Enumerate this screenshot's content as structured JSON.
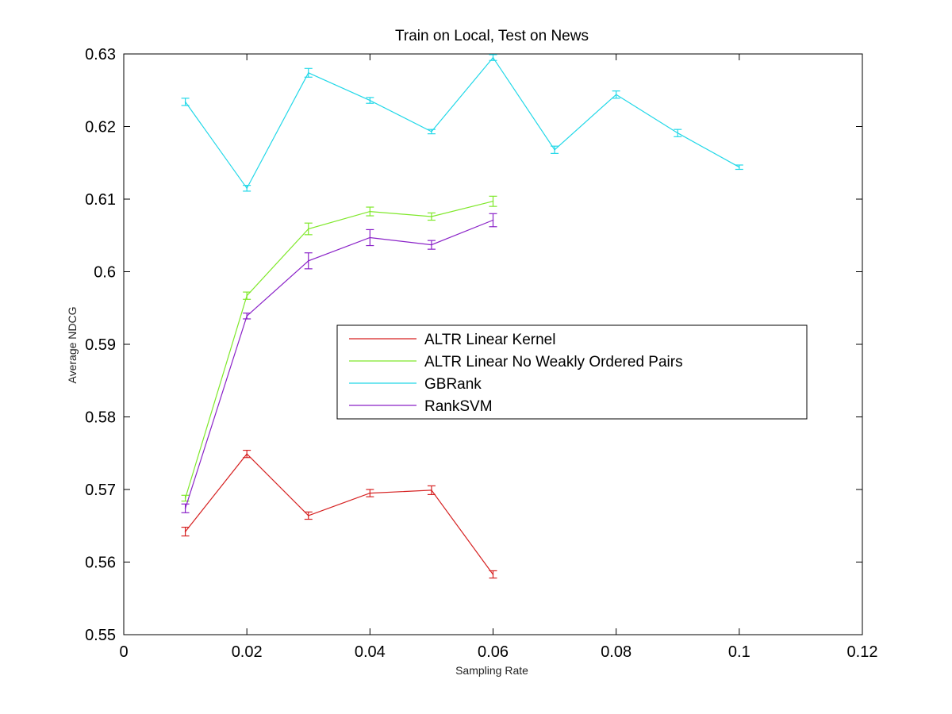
{
  "chart_data": {
    "type": "line",
    "title": "Train on Local, Test on News",
    "xlabel": "Sampling Rate",
    "ylabel": "Average NDCG",
    "xlim": [
      0,
      0.12
    ],
    "ylim": [
      0.55,
      0.63
    ],
    "xticks": [
      0,
      0.02,
      0.04,
      0.06,
      0.08,
      0.1,
      0.12
    ],
    "xtick_labels": [
      "0",
      "0.02",
      "0.04",
      "0.06",
      "0.08",
      "0.1",
      "0.12"
    ],
    "yticks": [
      0.55,
      0.56,
      0.57,
      0.58,
      0.59,
      0.6,
      0.61,
      0.62,
      0.63
    ],
    "ytick_labels": [
      "0.55",
      "0.56",
      "0.57",
      "0.58",
      "0.59",
      "0.6",
      "0.61",
      "0.62",
      "0.63"
    ],
    "grid": false,
    "legend_position": "center-right",
    "error_bars": true,
    "series": [
      {
        "name": "ALTR Linear Kernel",
        "color": "#d62222",
        "x": [
          0.01,
          0.02,
          0.03,
          0.04,
          0.05,
          0.06
        ],
        "y": [
          0.5642,
          0.5749,
          0.5664,
          0.5695,
          0.5699,
          0.5583
        ],
        "err": [
          0.0006,
          0.0005,
          0.0005,
          0.0005,
          0.0006,
          0.0005
        ]
      },
      {
        "name": "ALTR Linear No Weakly Ordered Pairs",
        "color": "#7fe82a",
        "x": [
          0.01,
          0.02,
          0.03,
          0.04,
          0.05,
          0.06
        ],
        "y": [
          0.5688,
          0.5967,
          0.6059,
          0.6083,
          0.6076,
          0.6097
        ],
        "err": [
          0.0004,
          0.0005,
          0.0008,
          0.0006,
          0.0005,
          0.0007
        ]
      },
      {
        "name": "GBRank",
        "color": "#22d8e8",
        "x": [
          0.01,
          0.02,
          0.03,
          0.04,
          0.05,
          0.06,
          0.07,
          0.08,
          0.09,
          0.1
        ],
        "y": [
          0.6234,
          0.6115,
          0.6274,
          0.6236,
          0.6193,
          0.6295,
          0.6168,
          0.6244,
          0.6191,
          0.6144
        ],
        "err": [
          0.0005,
          0.0004,
          0.0006,
          0.0004,
          0.0003,
          0.0004,
          0.0005,
          0.0005,
          0.0005,
          0.0003
        ]
      },
      {
        "name": "RankSVM",
        "color": "#8a22c8",
        "x": [
          0.01,
          0.02,
          0.03,
          0.04,
          0.05,
          0.06
        ],
        "y": [
          0.5674,
          0.5939,
          0.6015,
          0.6047,
          0.6037,
          0.6071
        ],
        "err": [
          0.0006,
          0.0004,
          0.0011,
          0.0011,
          0.0006,
          0.0009
        ]
      }
    ]
  }
}
